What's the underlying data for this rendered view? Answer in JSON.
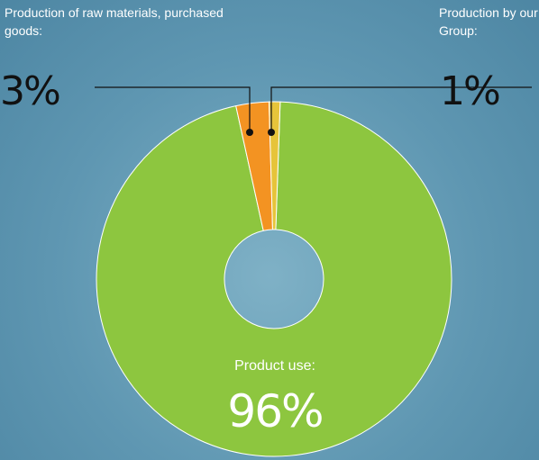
{
  "chart_data": {
    "type": "pie",
    "categories": [
      "Product use:",
      "Production of raw materials, purchased goods:",
      "Production by our Group:"
    ],
    "values": [
      96,
      3,
      1
    ],
    "value_labels": [
      "96%",
      "3%",
      "1%"
    ],
    "colors": [
      "#8dc63f",
      "#f39322",
      "#e6c43a"
    ],
    "donut": true
  }
}
